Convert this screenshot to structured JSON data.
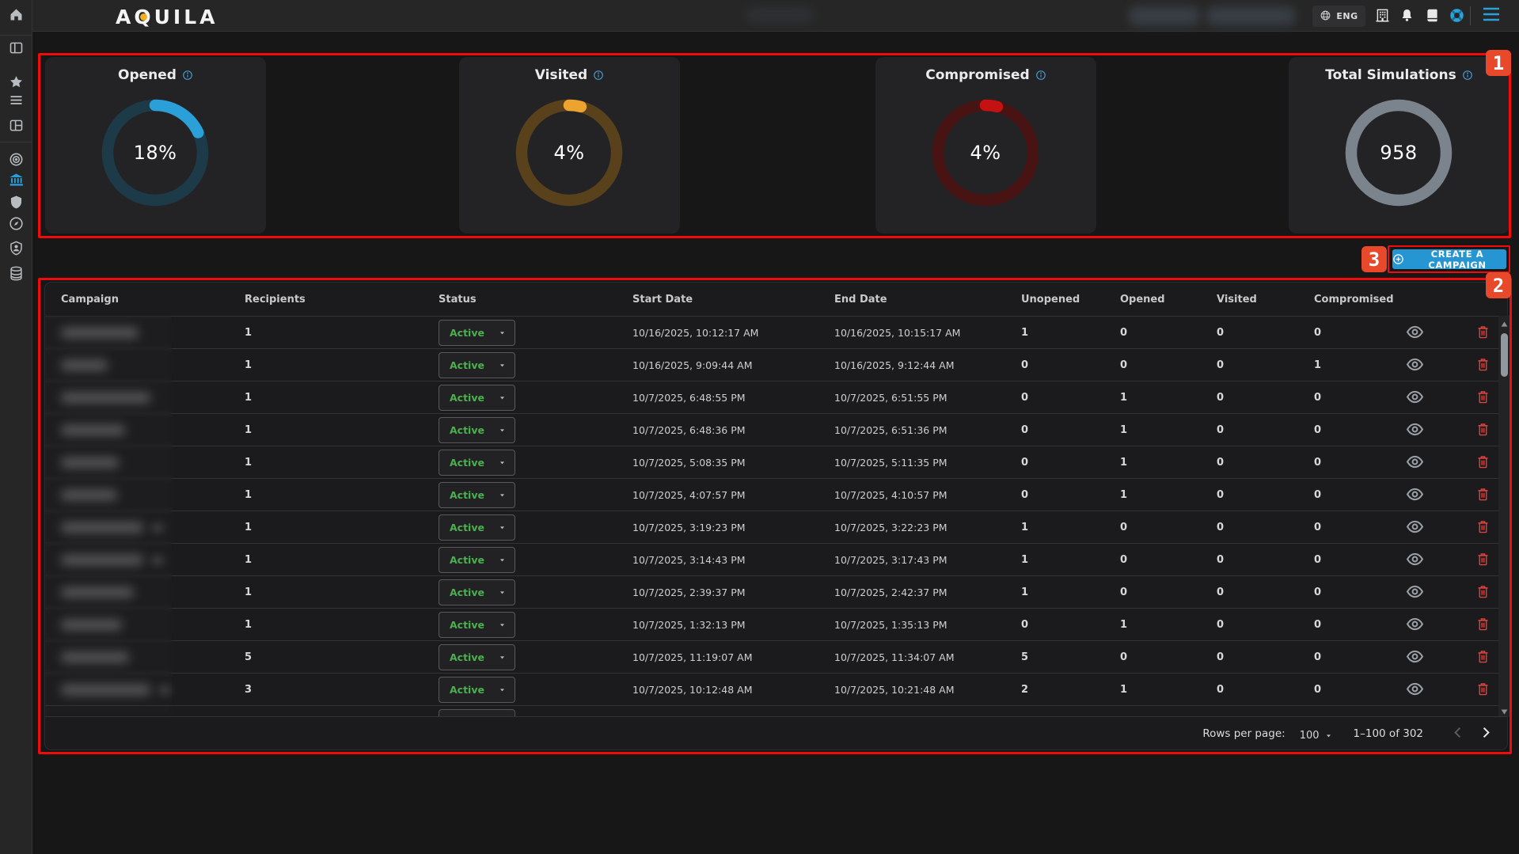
{
  "app": {
    "logo": "AQUILA"
  },
  "topbar": {
    "language": "ENG",
    "icons": [
      "building",
      "bell",
      "book",
      "lifebuoy",
      "menu"
    ]
  },
  "sidebar": {
    "items": [
      {
        "icon": "home",
        "active": false
      },
      {
        "icon": "split-panel",
        "active": false
      },
      {
        "icon": "star",
        "active": false
      },
      {
        "icon": "list",
        "active": false
      },
      {
        "icon": "layout",
        "active": false
      },
      {
        "icon": "target",
        "active": false
      },
      {
        "icon": "bank",
        "active": true
      },
      {
        "icon": "shield",
        "active": false
      },
      {
        "icon": "compass",
        "active": false
      },
      {
        "icon": "user-shield",
        "active": false
      },
      {
        "icon": "database",
        "active": false
      }
    ]
  },
  "chart_data": [
    {
      "type": "donut",
      "title": "Opened",
      "value_pct": 18,
      "label": "18%",
      "arc_color": "#2a9fd8",
      "track_color": "#1d3a49"
    },
    {
      "type": "donut",
      "title": "Visited",
      "value_pct": 4,
      "label": "4%",
      "arc_color": "#eda32f",
      "track_color": "#59411b"
    },
    {
      "type": "donut",
      "title": "Compromised",
      "value_pct": 4,
      "label": "4%",
      "arc_color": "#c41111",
      "track_color": "#471413"
    },
    {
      "type": "donut",
      "title": "Total Simulations",
      "value_pct": null,
      "label": "958",
      "arc_color": null,
      "track_color": "#7b838d"
    }
  ],
  "create_campaign": {
    "label": "CREATE A CAMPAIGN"
  },
  "table": {
    "columns": [
      "Campaign",
      "Recipients",
      "Status",
      "Start Date",
      "End Date",
      "Unopened",
      "Opened",
      "Visited",
      "Compromised"
    ],
    "rows": [
      {
        "redacted": true,
        "blur_w": 98,
        "extra": false,
        "recipients": "1",
        "status": "Active",
        "start": "10/16/2025, 10:12:17 AM",
        "end": "10/16/2025, 10:15:17 AM",
        "unopened": "1",
        "opened": "0",
        "visited": "0",
        "compromised": "0"
      },
      {
        "redacted": true,
        "blur_w": 59,
        "extra": false,
        "recipients": "1",
        "status": "Active",
        "start": "10/16/2025, 9:09:44 AM",
        "end": "10/16/2025, 9:12:44 AM",
        "unopened": "0",
        "opened": "0",
        "visited": "0",
        "compromised": "1"
      },
      {
        "redacted": true,
        "blur_w": 113,
        "extra": false,
        "recipients": "1",
        "status": "Active",
        "start": "10/7/2025, 6:48:55 PM",
        "end": "10/7/2025, 6:51:55 PM",
        "unopened": "0",
        "opened": "1",
        "visited": "0",
        "compromised": "0"
      },
      {
        "redacted": true,
        "blur_w": 81,
        "extra": false,
        "recipients": "1",
        "status": "Active",
        "start": "10/7/2025, 6:48:36 PM",
        "end": "10/7/2025, 6:51:36 PM",
        "unopened": "0",
        "opened": "1",
        "visited": "0",
        "compromised": "0"
      },
      {
        "redacted": true,
        "blur_w": 73,
        "extra": false,
        "recipients": "1",
        "status": "Active",
        "start": "10/7/2025, 5:08:35 PM",
        "end": "10/7/2025, 5:11:35 PM",
        "unopened": "0",
        "opened": "1",
        "visited": "0",
        "compromised": "0"
      },
      {
        "redacted": true,
        "blur_w": 71,
        "extra": false,
        "recipients": "1",
        "status": "Active",
        "start": "10/7/2025, 4:07:57 PM",
        "end": "10/7/2025, 4:10:57 PM",
        "unopened": "0",
        "opened": "1",
        "visited": "0",
        "compromised": "0"
      },
      {
        "redacted": true,
        "blur_w": 104,
        "extra": true,
        "recipients": "1",
        "status": "Active",
        "start": "10/7/2025, 3:19:23 PM",
        "end": "10/7/2025, 3:22:23 PM",
        "unopened": "1",
        "opened": "0",
        "visited": "0",
        "compromised": "0"
      },
      {
        "redacted": true,
        "blur_w": 104,
        "extra": true,
        "recipients": "1",
        "status": "Active",
        "start": "10/7/2025, 3:14:43 PM",
        "end": "10/7/2025, 3:17:43 PM",
        "unopened": "1",
        "opened": "0",
        "visited": "0",
        "compromised": "0"
      },
      {
        "redacted": true,
        "blur_w": 92,
        "extra": false,
        "recipients": "1",
        "status": "Active",
        "start": "10/7/2025, 2:39:37 PM",
        "end": "10/7/2025, 2:42:37 PM",
        "unopened": "1",
        "opened": "0",
        "visited": "0",
        "compromised": "0"
      },
      {
        "redacted": true,
        "blur_w": 77,
        "extra": false,
        "recipients": "1",
        "status": "Active",
        "start": "10/7/2025, 1:32:13 PM",
        "end": "10/7/2025, 1:35:13 PM",
        "unopened": "0",
        "opened": "1",
        "visited": "0",
        "compromised": "0"
      },
      {
        "redacted": true,
        "blur_w": 86,
        "extra": false,
        "recipients": "5",
        "status": "Active",
        "start": "10/7/2025, 11:19:07 AM",
        "end": "10/7/2025, 11:34:07 AM",
        "unopened": "5",
        "opened": "0",
        "visited": "0",
        "compromised": "0"
      },
      {
        "redacted": true,
        "blur_w": 113,
        "extra": true,
        "recipients": "3",
        "status": "Active",
        "start": "10/7/2025, 10:12:48 AM",
        "end": "10/7/2025, 10:21:48 AM",
        "unopened": "2",
        "opened": "1",
        "visited": "0",
        "compromised": "0"
      }
    ]
  },
  "pagination": {
    "rows_per_page_label": "Rows per page:",
    "rows_per_page": "100",
    "range": "1–100 of 302"
  },
  "annotations": {
    "box1": "1",
    "box2": "2",
    "box3": "3"
  }
}
